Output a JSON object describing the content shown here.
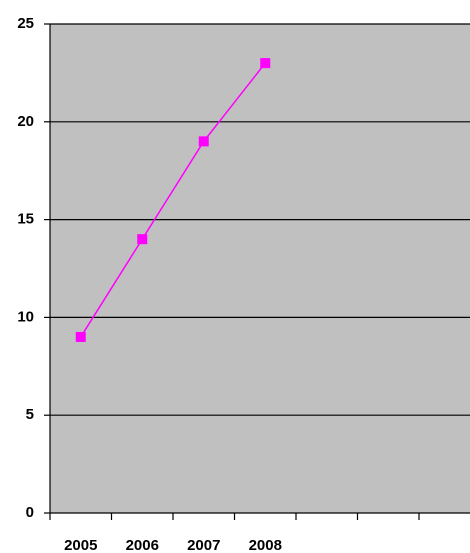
{
  "chart_data": {
    "type": "line",
    "categories": [
      "2005",
      "2006",
      "2007",
      "2008",
      null,
      null,
      null
    ],
    "values": [
      9,
      14,
      19,
      23,
      null,
      null,
      null
    ],
    "color": "#ff00ff",
    "ylim": [
      0,
      25
    ],
    "yticks": [
      0,
      5,
      10,
      15,
      20,
      25
    ],
    "grid": true
  }
}
